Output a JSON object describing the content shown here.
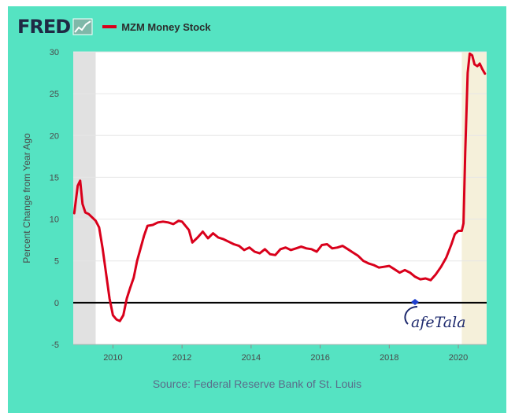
{
  "header": {
    "logo_text": "FRED",
    "logo_icon": "graph-icon"
  },
  "colors": {
    "frame": "#55e3c2",
    "series": "#d9001b",
    "recession_2009": "#e1e1e1",
    "recession_2020": "#f5f0da",
    "zero_line": "#000000"
  },
  "source": "Source: Federal Reserve Bank of St. Louis",
  "watermark": {
    "text": "CafeTala"
  },
  "chart_data": {
    "type": "line",
    "title": "",
    "ylabel": "Percent Change from Year Ago",
    "xlabel": "",
    "xlim": [
      2008.85,
      2020.82
    ],
    "ylim": [
      -5,
      30
    ],
    "yticks": [
      -5,
      0,
      5,
      10,
      15,
      20,
      25,
      30
    ],
    "xticks": [
      2010,
      2012,
      2014,
      2016,
      2018,
      2020
    ],
    "ytick_labels": [
      "-5",
      "0",
      "5",
      "10",
      "15",
      "20",
      "25",
      "30"
    ],
    "xtick_labels": [
      "2010",
      "2012",
      "2014",
      "2016",
      "2018",
      "2020"
    ],
    "grid": "horizontal",
    "shaded_periods": [
      {
        "start": 2008.85,
        "end": 2009.5
      },
      {
        "start": 2020.1,
        "end": 2020.82
      }
    ],
    "reference_line": 0,
    "series": [
      {
        "name": "MZM Money Stock",
        "x": [
          2008.88,
          2008.98,
          2009.05,
          2009.12,
          2009.2,
          2009.3,
          2009.4,
          2009.5,
          2009.6,
          2009.7,
          2009.8,
          2009.9,
          2010.0,
          2010.1,
          2010.2,
          2010.3,
          2010.4,
          2010.5,
          2010.6,
          2010.7,
          2010.8,
          2010.9,
          2011.0,
          2011.15,
          2011.3,
          2011.45,
          2011.6,
          2011.75,
          2011.9,
          2012.0,
          2012.1,
          2012.2,
          2012.3,
          2012.45,
          2012.6,
          2012.75,
          2012.9,
          2013.05,
          2013.2,
          2013.35,
          2013.5,
          2013.65,
          2013.8,
          2013.95,
          2014.1,
          2014.25,
          2014.4,
          2014.55,
          2014.7,
          2014.85,
          2015.0,
          2015.15,
          2015.3,
          2015.45,
          2015.6,
          2015.75,
          2015.9,
          2016.05,
          2016.2,
          2016.35,
          2016.5,
          2016.65,
          2016.8,
          2016.95,
          2017.1,
          2017.25,
          2017.4,
          2017.55,
          2017.7,
          2017.85,
          2018.0,
          2018.15,
          2018.3,
          2018.45,
          2018.6,
          2018.75,
          2018.9,
          2019.05,
          2019.2,
          2019.35,
          2019.5,
          2019.65,
          2019.8,
          2019.9,
          2020.0,
          2020.1,
          2020.15,
          2020.2,
          2020.27,
          2020.33,
          2020.4,
          2020.47,
          2020.55,
          2020.62,
          2020.7,
          2020.77
        ],
        "values": [
          10.7,
          14.0,
          14.6,
          11.8,
          10.8,
          10.6,
          10.2,
          9.8,
          9.0,
          6.5,
          3.5,
          0.5,
          -1.5,
          -2.0,
          -2.2,
          -1.5,
          0.5,
          1.8,
          3.0,
          5.0,
          6.5,
          8.0,
          9.2,
          9.3,
          9.6,
          9.7,
          9.6,
          9.4,
          9.8,
          9.7,
          9.2,
          8.7,
          7.2,
          7.8,
          8.5,
          7.7,
          8.3,
          7.8,
          7.6,
          7.3,
          7.0,
          6.8,
          6.3,
          6.6,
          6.1,
          5.9,
          6.4,
          5.8,
          5.7,
          6.4,
          6.6,
          6.3,
          6.5,
          6.7,
          6.5,
          6.4,
          6.1,
          6.9,
          7.0,
          6.5,
          6.6,
          6.8,
          6.4,
          6.0,
          5.6,
          5.0,
          4.7,
          4.5,
          4.2,
          4.3,
          4.4,
          4.0,
          3.6,
          3.9,
          3.6,
          3.1,
          2.8,
          2.9,
          2.7,
          3.4,
          4.3,
          5.4,
          7.0,
          8.2,
          8.6,
          8.6,
          9.5,
          18.0,
          27.5,
          29.8,
          29.6,
          28.5,
          28.3,
          28.6,
          27.9,
          27.4
        ]
      }
    ]
  }
}
